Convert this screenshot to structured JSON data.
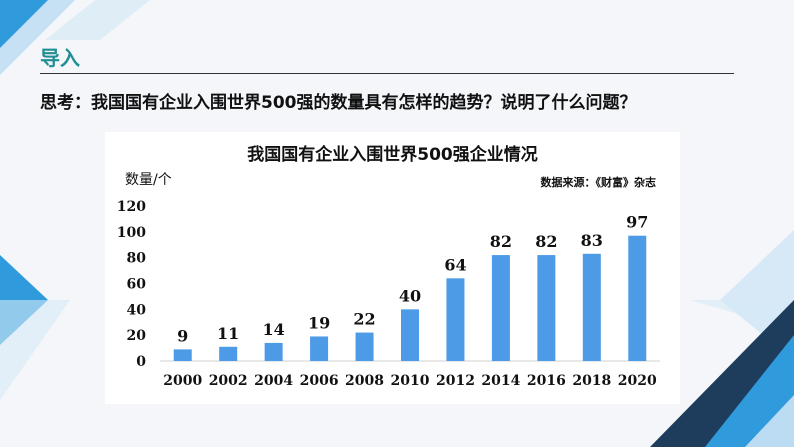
{
  "header": {
    "section_title": "导入",
    "question": "思考：我国国有企业入围世界500强的数量具有怎样的趋势？说明了什么问题？"
  },
  "colors": {
    "accent": "#1f8f95",
    "bar": "#4d9ae6",
    "shape_light": "#bcdcf3",
    "shape_blue": "#2f9bdc",
    "shape_navy": "#1e3d5c"
  },
  "chart_data": {
    "type": "bar",
    "title": "我国国有企业入围世界500强企业情况",
    "ylabel": "数量/个",
    "source": "数据来源：《财富》杂志",
    "categories": [
      "2000",
      "2002",
      "2004",
      "2006",
      "2008",
      "2010",
      "2012",
      "2014",
      "2016",
      "2018",
      "2020"
    ],
    "values": [
      9,
      11,
      14,
      19,
      22,
      40,
      64,
      82,
      82,
      83,
      97
    ],
    "ylim": [
      0,
      120
    ],
    "yticks": [
      0,
      20,
      40,
      60,
      80,
      100,
      120
    ],
    "grid": false,
    "data_labels": true
  }
}
